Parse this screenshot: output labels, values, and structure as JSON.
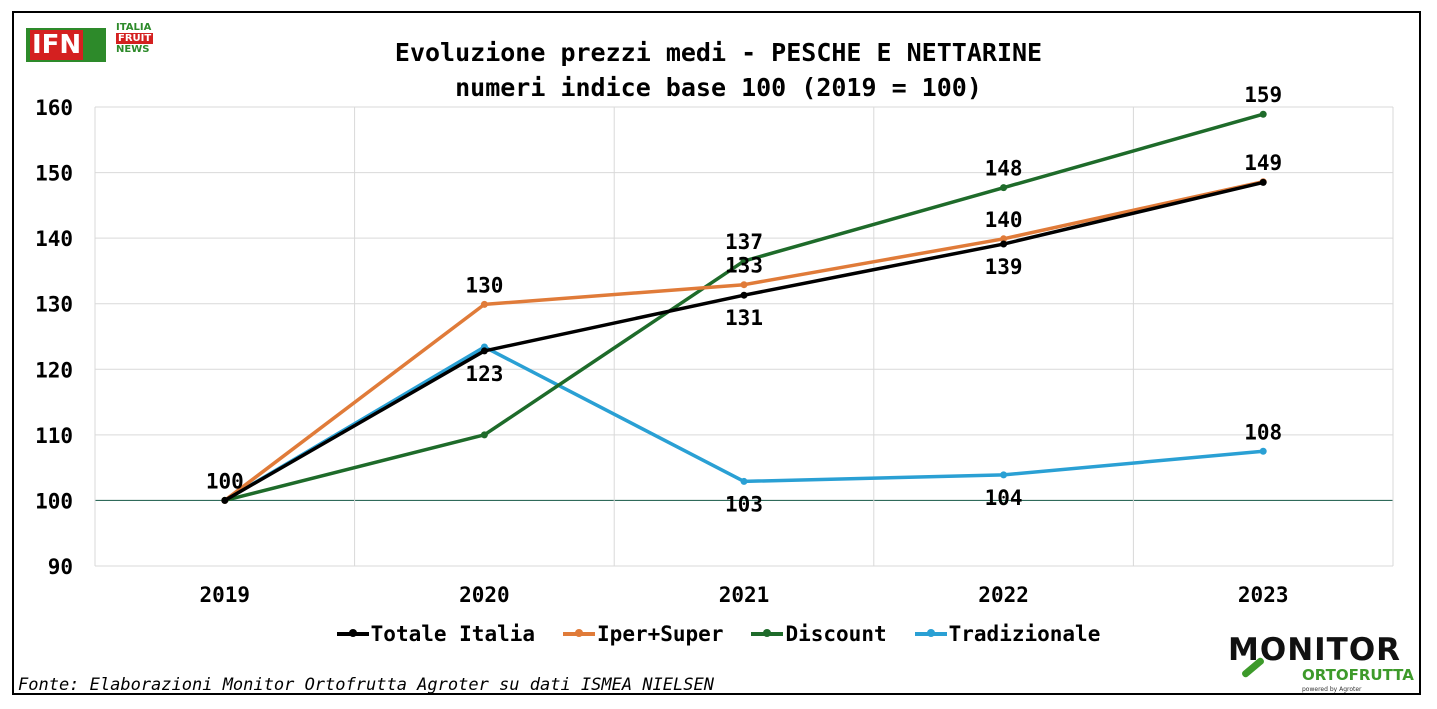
{
  "header": {
    "logo_ifn": "IFN",
    "logo_ifn_lines": [
      "ITALIA",
      "FRUIT",
      "NEWS"
    ],
    "logo_monitor": [
      "MONITOR",
      "ORTOFRUTTA",
      "powered by Agroter"
    ]
  },
  "colors": {
    "totale": "#000000",
    "iper": "#e07b39",
    "discount": "#1e6b2a",
    "tradizionale": "#2aa0d4"
  },
  "source": "Fonte: Elaborazioni Monitor Ortofrutta Agroter su dati ISMEA NIELSEN",
  "chart_data": {
    "type": "line",
    "title": "Evoluzione prezzi medi - PESCHE E NETTARINE",
    "subtitle": "numeri indice base 100 (2019 = 100)",
    "categories": [
      "2019",
      "2020",
      "2021",
      "2022",
      "2023"
    ],
    "ylim": [
      90,
      160
    ],
    "yticks": [
      90,
      100,
      110,
      120,
      130,
      140,
      150,
      160
    ],
    "grid": true,
    "legend_position": "bottom",
    "series": [
      {
        "name": "Totale Italia",
        "color": "#000000",
        "values": [
          100,
          122.8,
          131.3,
          139.1,
          148.5
        ],
        "labels": [
          "",
          "123",
          "131",
          "139",
          ""
        ],
        "label_pos": [
          "",
          "below",
          "below",
          "below",
          ""
        ]
      },
      {
        "name": "Iper+Super",
        "color": "#e07b39",
        "values": [
          100,
          129.9,
          132.9,
          139.9,
          148.6
        ],
        "labels": [
          "100",
          "130",
          "133",
          "140",
          "149"
        ],
        "label_pos": [
          "above",
          "above",
          "above",
          "above",
          "above"
        ]
      },
      {
        "name": "Discount",
        "color": "#1e6b2a",
        "values": [
          100,
          110.0,
          136.5,
          147.7,
          158.9
        ],
        "labels": [
          "",
          "",
          "137",
          "148",
          "159"
        ],
        "label_pos": [
          "",
          "",
          "above",
          "above",
          "above"
        ]
      },
      {
        "name": "Tradizionale",
        "color": "#2aa0d4",
        "values": [
          100,
          123.4,
          102.9,
          103.9,
          107.5
        ],
        "labels": [
          "",
          "",
          "103",
          "104",
          "108"
        ],
        "label_pos": [
          "",
          "",
          "below",
          "below",
          "above"
        ]
      }
    ]
  }
}
